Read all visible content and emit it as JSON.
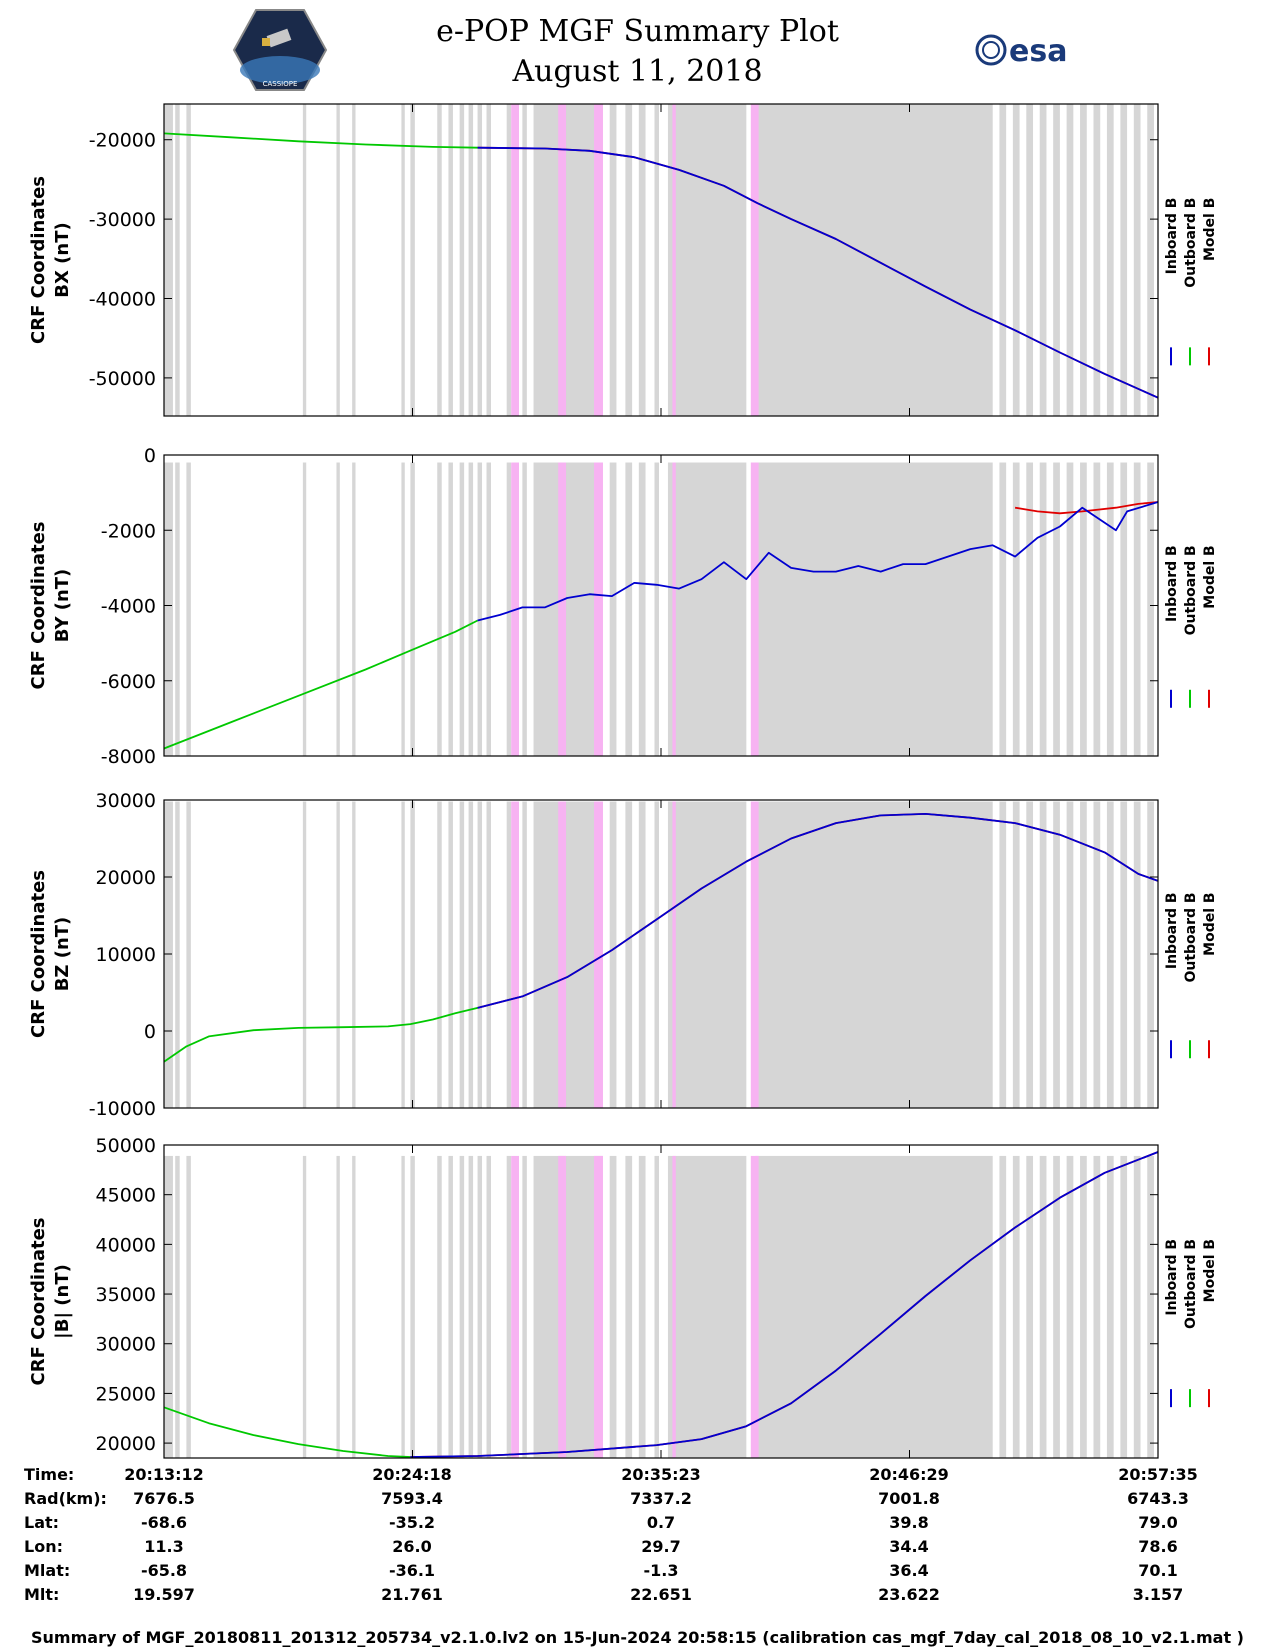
{
  "title": {
    "line1": "e-POP MGF Summary Plot",
    "line2": "August 11, 2018"
  },
  "logos": {
    "left": "cassiope-mission-logo",
    "left_text": "CASSIOPE",
    "right": "esa-logo",
    "right_text": "esa"
  },
  "colors": {
    "inboard": "#0000d0",
    "outboard": "#00c800",
    "model": "#e00000",
    "gray_band": "#d6d6d6",
    "pink_band": "#f7b3f2"
  },
  "chart_data": {
    "type": "line",
    "x_range_minutes": [
      0,
      44.38
    ],
    "x_ticks": [
      "20:13:12",
      "20:24:18",
      "20:35:23",
      "20:46:29",
      "20:57:35"
    ],
    "legend": [
      "Inboard B",
      "Outboard B",
      "Model B"
    ],
    "legend_placement": "right, vertical",
    "gray_bands": [
      [
        0,
        0.4
      ],
      [
        0.5,
        0.7
      ],
      [
        1.0,
        1.2
      ],
      [
        6.2,
        6.35
      ],
      [
        7.7,
        7.85
      ],
      [
        8.4,
        8.55
      ],
      [
        10.6,
        10.75
      ],
      [
        11.0,
        11.2
      ],
      [
        12.2,
        12.4
      ],
      [
        12.7,
        12.9
      ],
      [
        13.2,
        13.4
      ],
      [
        13.6,
        13.8
      ],
      [
        14.0,
        14.2
      ],
      [
        14.4,
        14.6
      ],
      [
        15.3,
        15.5
      ],
      [
        16.0,
        16.2
      ],
      [
        16.5,
        19.6
      ],
      [
        19.9,
        20.2
      ],
      [
        20.6,
        20.9
      ],
      [
        21.2,
        21.5
      ],
      [
        21.9,
        22.1
      ],
      [
        22.5,
        26.0
      ],
      [
        26.4,
        37.0
      ],
      [
        37.3,
        37.6
      ],
      [
        37.9,
        38.2
      ],
      [
        38.5,
        38.8
      ],
      [
        39.1,
        39.4
      ],
      [
        39.7,
        40.0
      ],
      [
        40.3,
        40.6
      ],
      [
        40.9,
        41.2
      ],
      [
        41.5,
        41.8
      ],
      [
        42.1,
        42.4
      ],
      [
        42.7,
        43.0
      ],
      [
        43.3,
        43.6
      ],
      [
        43.9,
        44.2
      ]
    ],
    "pink_bands": [
      [
        15.5,
        15.85
      ],
      [
        17.6,
        17.95
      ],
      [
        19.2,
        19.6
      ],
      [
        22.7,
        22.85
      ],
      [
        26.2,
        26.55
      ]
    ],
    "panels": [
      {
        "ylabel_line1": "CRF Coordinates",
        "ylabel_line2": "BX (nT)",
        "ylim": [
          -54800,
          -15500
        ],
        "yticks": [
          -20000,
          -30000,
          -40000,
          -50000
        ],
        "gray_top": -15500,
        "series": [
          {
            "name": "Outboard B",
            "color": "outboard",
            "points": [
              [
                0,
                -19200
              ],
              [
                3,
                -19700
              ],
              [
                6,
                -20200
              ],
              [
                9,
                -20600
              ],
              [
                12,
                -20900
              ],
              [
                14,
                -21000
              ]
            ]
          },
          {
            "name": "Model B",
            "color": "model",
            "points": [
              [
                14,
                -21000
              ],
              [
                17,
                -21100
              ],
              [
                19,
                -21400
              ],
              [
                21,
                -22200
              ],
              [
                23,
                -23800
              ],
              [
                25,
                -25800
              ],
              [
                26.5,
                -28000
              ],
              [
                28,
                -30000
              ],
              [
                30,
                -32500
              ],
              [
                32,
                -35500
              ],
              [
                34,
                -38500
              ],
              [
                36,
                -41400
              ],
              [
                38,
                -44000
              ],
              [
                40,
                -46800
              ],
              [
                42,
                -49500
              ],
              [
                44.38,
                -52500
              ]
            ]
          },
          {
            "name": "Inboard B",
            "color": "inboard",
            "points": [
              [
                14,
                -21000
              ],
              [
                17,
                -21100
              ],
              [
                19,
                -21400
              ],
              [
                21,
                -22200
              ],
              [
                23,
                -23800
              ],
              [
                25,
                -25800
              ],
              [
                26.5,
                -28000
              ],
              [
                28,
                -30000
              ],
              [
                30,
                -32500
              ],
              [
                32,
                -35500
              ],
              [
                34,
                -38500
              ],
              [
                36,
                -41400
              ],
              [
                38,
                -44000
              ],
              [
                40,
                -46800
              ],
              [
                42,
                -49500
              ],
              [
                44.38,
                -52500
              ]
            ]
          }
        ]
      },
      {
        "ylabel_line1": "CRF Coordinates",
        "ylabel_line2": "BY (nT)",
        "ylim": [
          -8000,
          0
        ],
        "yticks": [
          0,
          -2000,
          -4000,
          -6000,
          -8000
        ],
        "gray_top": -200,
        "series": [
          {
            "name": "Outboard B",
            "color": "outboard",
            "points": [
              [
                0,
                -7800
              ],
              [
                3,
                -7100
              ],
              [
                6,
                -6400
              ],
              [
                9,
                -5700
              ],
              [
                11,
                -5200
              ],
              [
                13,
                -4700
              ],
              [
                14,
                -4400
              ]
            ]
          },
          {
            "name": "Model B",
            "color": "model",
            "points": [
              [
                38,
                -1400
              ],
              [
                39,
                -1500
              ],
              [
                40,
                -1550
              ],
              [
                41,
                -1500
              ],
              [
                42.5,
                -1400
              ],
              [
                43.5,
                -1300
              ],
              [
                44.38,
                -1250
              ]
            ]
          },
          {
            "name": "Inboard B",
            "color": "inboard",
            "points": [
              [
                14,
                -4400
              ],
              [
                15,
                -4250
              ],
              [
                16,
                -4050
              ],
              [
                17,
                -4050
              ],
              [
                18,
                -3800
              ],
              [
                19,
                -3700
              ],
              [
                20,
                -3750
              ],
              [
                21,
                -3400
              ],
              [
                22,
                -3450
              ],
              [
                23,
                -3550
              ],
              [
                24,
                -3300
              ],
              [
                25,
                -2850
              ],
              [
                26,
                -3300
              ],
              [
                27,
                -2600
              ],
              [
                28,
                -3000
              ],
              [
                29,
                -3100
              ],
              [
                30,
                -3100
              ],
              [
                31,
                -2950
              ],
              [
                32,
                -3100
              ],
              [
                33,
                -2900
              ],
              [
                34,
                -2900
              ],
              [
                35,
                -2700
              ],
              [
                36,
                -2500
              ],
              [
                37,
                -2400
              ],
              [
                38,
                -2700
              ],
              [
                39,
                -2200
              ],
              [
                40,
                -1900
              ],
              [
                41,
                -1400
              ],
              [
                42,
                -1800
              ],
              [
                42.5,
                -2000
              ],
              [
                43,
                -1500
              ],
              [
                44.38,
                -1250
              ]
            ]
          }
        ]
      },
      {
        "ylabel_line1": "CRF Coordinates",
        "ylabel_line2": "BZ (nT)",
        "ylim": [
          -10000,
          30000
        ],
        "yticks": [
          30000,
          20000,
          10000,
          0,
          -10000
        ],
        "gray_top": 29800,
        "series": [
          {
            "name": "Outboard B",
            "color": "outboard",
            "points": [
              [
                0,
                -4000
              ],
              [
                1,
                -2000
              ],
              [
                2,
                -700
              ],
              [
                4,
                100
              ],
              [
                6,
                400
              ],
              [
                8,
                500
              ],
              [
                10,
                600
              ],
              [
                11,
                900
              ],
              [
                12,
                1500
              ],
              [
                13,
                2300
              ],
              [
                14,
                3000
              ]
            ]
          },
          {
            "name": "Model B",
            "color": "model",
            "points": [
              [
                14,
                3000
              ],
              [
                16,
                4500
              ],
              [
                18,
                7000
              ],
              [
                20,
                10500
              ],
              [
                22,
                14500
              ],
              [
                24,
                18500
              ],
              [
                26,
                22000
              ],
              [
                28,
                25000
              ],
              [
                30,
                27000
              ],
              [
                32,
                28000
              ],
              [
                34,
                28200
              ],
              [
                36,
                27700
              ],
              [
                38,
                27000
              ],
              [
                40,
                25500
              ],
              [
                42,
                23200
              ],
              [
                43.5,
                20400
              ],
              [
                44.38,
                19500
              ]
            ]
          },
          {
            "name": "Inboard B",
            "color": "inboard",
            "points": [
              [
                14,
                3000
              ],
              [
                16,
                4500
              ],
              [
                18,
                7000
              ],
              [
                20,
                10500
              ],
              [
                22,
                14500
              ],
              [
                24,
                18500
              ],
              [
                26,
                22000
              ],
              [
                28,
                25000
              ],
              [
                30,
                27000
              ],
              [
                32,
                28000
              ],
              [
                34,
                28200
              ],
              [
                36,
                27700
              ],
              [
                38,
                27000
              ],
              [
                40,
                25500
              ],
              [
                42,
                23200
              ],
              [
                43.5,
                20400
              ],
              [
                44.38,
                19500
              ]
            ]
          }
        ]
      },
      {
        "ylabel_line1": "CRF Coordinates",
        "ylabel_line2": "|B| (nT)",
        "ylim": [
          18500,
          50000
        ],
        "yticks": [
          50000,
          45000,
          40000,
          35000,
          30000,
          25000,
          20000
        ],
        "gray_top": 48900,
        "series": [
          {
            "name": "Outboard B",
            "color": "outboard",
            "points": [
              [
                0,
                23600
              ],
              [
                2,
                22000
              ],
              [
                4,
                20800
              ],
              [
                6,
                19900
              ],
              [
                8,
                19200
              ],
              [
                10,
                18700
              ],
              [
                11,
                18600
              ]
            ]
          },
          {
            "name": "Model B",
            "color": "model",
            "points": [
              [
                11,
                18600
              ],
              [
                14,
                18700
              ],
              [
                18,
                19100
              ],
              [
                22,
                19800
              ],
              [
                24,
                20400
              ],
              [
                26,
                21700
              ],
              [
                28,
                24000
              ],
              [
                30,
                27300
              ],
              [
                32,
                31000
              ],
              [
                34,
                34800
              ],
              [
                36,
                38400
              ],
              [
                38,
                41700
              ],
              [
                40,
                44700
              ],
              [
                42,
                47200
              ],
              [
                44.38,
                49300
              ]
            ]
          },
          {
            "name": "Inboard B",
            "color": "inboard",
            "points": [
              [
                11,
                18600
              ],
              [
                14,
                18700
              ],
              [
                18,
                19100
              ],
              [
                22,
                19800
              ],
              [
                24,
                20400
              ],
              [
                26,
                21700
              ],
              [
                28,
                24000
              ],
              [
                30,
                27300
              ],
              [
                32,
                31000
              ],
              [
                34,
                34800
              ],
              [
                36,
                38400
              ],
              [
                38,
                41700
              ],
              [
                40,
                44700
              ],
              [
                42,
                47200
              ],
              [
                44.38,
                49300
              ]
            ]
          }
        ]
      }
    ]
  },
  "ephemeris": [
    {
      "label": "Time:",
      "values": [
        "20:13:12",
        "20:24:18",
        "20:35:23",
        "20:46:29",
        "20:57:35"
      ]
    },
    {
      "label": "Rad(km):",
      "values": [
        "7676.5",
        "7593.4",
        "7337.2",
        "7001.8",
        "6743.3"
      ]
    },
    {
      "label": "Lat:",
      "values": [
        "-68.6",
        "-35.2",
        "0.7",
        "39.8",
        "79.0"
      ]
    },
    {
      "label": "Lon:",
      "values": [
        "11.3",
        "26.0",
        "29.7",
        "34.4",
        "78.6"
      ]
    },
    {
      "label": "Mlat:",
      "values": [
        "-65.8",
        "-36.1",
        "-1.3",
        "36.4",
        "70.1"
      ]
    },
    {
      "label": "Mlt:",
      "values": [
        "19.597",
        "21.761",
        "22.651",
        "23.622",
        "3.157"
      ]
    }
  ],
  "footer": "Summary of MGF_20180811_201312_205734_v2.1.0.lv2 on 15-Jun-2024 20:58:15 (calibration cas_mgf_7day_cal_2018_08_10_v2.1.mat )"
}
